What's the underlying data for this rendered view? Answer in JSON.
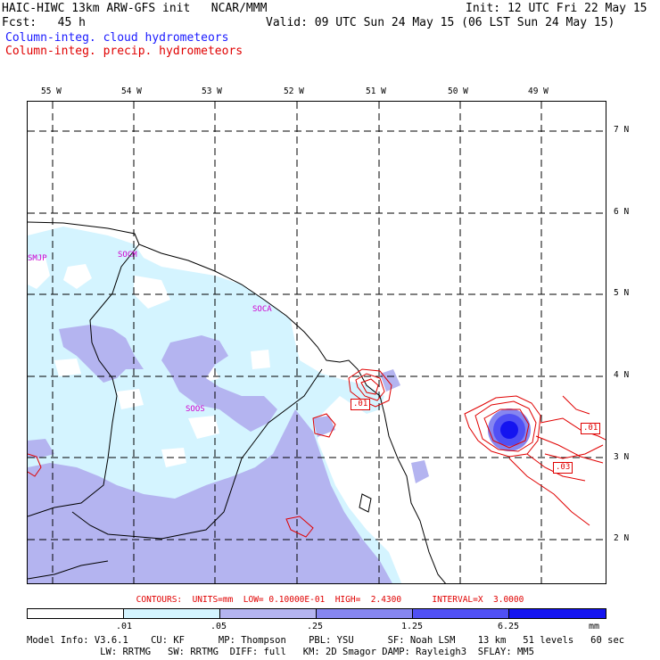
{
  "header": {
    "left_line1": "HAIC-HIWC 13km ARW-GFS init   NCAR/MMM",
    "left_line2": "Fcst:   45 h",
    "right_line1": "Init: 12 UTC Fri 22 May 15",
    "right_line2": "Valid: 09 UTC Sun 24 May 15 (06 LST Sun 24 May 15)",
    "legend_cloud": "Column-integ. cloud hydrometeors",
    "legend_precip": "Column-integ. precip. hydrometeors",
    "legend_cloud_color": "#1a1aff",
    "legend_precip_color": "#e00000"
  },
  "map": {
    "lon_labels": [
      "55 W",
      "54 W",
      "53 W",
      "52 W",
      "51 W",
      "50 W",
      "49 W"
    ],
    "lat_labels": [
      "7 N",
      "6 N",
      "5 N",
      "4 N",
      "3 N",
      "2 N"
    ],
    "stations": [
      "SMJP",
      "SOCM",
      "SOCA",
      "SOOS"
    ],
    "contour_labels": [
      ".01",
      ".01",
      ".03"
    ]
  },
  "contours": {
    "text": "CONTOURS:  UNITS=mm  LOW= 0.10000E-01  HIGH=  2.4300      INTERVAL=X  3.0000"
  },
  "scale": {
    "labels": [
      ".01",
      ".05",
      ".25",
      "1.25",
      "6.25",
      "mm"
    ],
    "colors": [
      "#ffffff",
      "#d4f4ff",
      "#b4b4f0",
      "#8686f0",
      "#5050f4",
      "#1414f0"
    ]
  },
  "footer": {
    "line1": "Model Info: V3.6.1    CU: KF      MP: Thompson    PBL: YSU      SF: Noah LSM    13 km   51 levels   60 sec",
    "line2": "             LW: RRTMG   SW: RRTMG  DIFF: full   KM: 2D Smagor DAMP: Rayleigh3  SFLAY: MM5"
  }
}
